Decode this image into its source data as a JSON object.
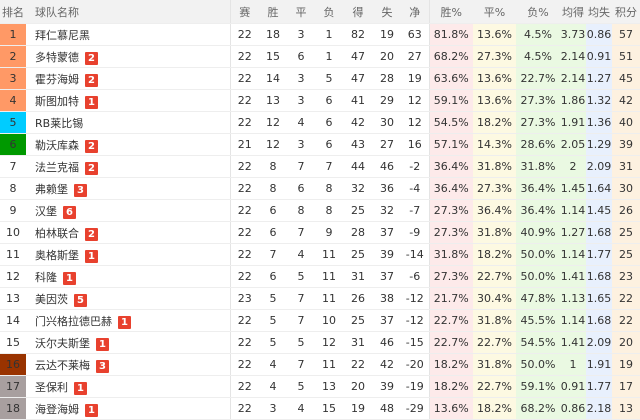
{
  "colors": {
    "champions": "#ff9966",
    "europa": "#00ccff",
    "conference": "#009900",
    "playoff": "#993300",
    "relegation": "#a89f9f",
    "badge": "#e8412e"
  },
  "headers": [
    "排名",
    "球队名称",
    "赛",
    "胜",
    "平",
    "负",
    "得",
    "失",
    "净",
    "胜%",
    "平%",
    "负%",
    "均得",
    "均失",
    "积分"
  ],
  "rows": [
    {
      "rank": "1",
      "zone": "champions",
      "name": "拜仁慕尼黑",
      "badge": "",
      "v": [
        "22",
        "18",
        "3",
        "1",
        "82",
        "19",
        "63",
        "81.8%",
        "13.6%",
        "4.5%",
        "3.73",
        "0.86",
        "57"
      ]
    },
    {
      "rank": "2",
      "zone": "champions",
      "name": "多特蒙德",
      "badge": "2",
      "v": [
        "22",
        "15",
        "6",
        "1",
        "47",
        "20",
        "27",
        "68.2%",
        "27.3%",
        "4.5%",
        "2.14",
        "0.91",
        "51"
      ]
    },
    {
      "rank": "3",
      "zone": "champions",
      "name": "霍芬海姆",
      "badge": "2",
      "v": [
        "22",
        "14",
        "3",
        "5",
        "47",
        "28",
        "19",
        "63.6%",
        "13.6%",
        "22.7%",
        "2.14",
        "1.27",
        "45"
      ]
    },
    {
      "rank": "4",
      "zone": "champions",
      "name": "斯图加特",
      "badge": "1",
      "v": [
        "22",
        "13",
        "3",
        "6",
        "41",
        "29",
        "12",
        "59.1%",
        "13.6%",
        "27.3%",
        "1.86",
        "1.32",
        "42"
      ]
    },
    {
      "rank": "5",
      "zone": "europa",
      "name": "RB莱比锡",
      "badge": "",
      "v": [
        "22",
        "12",
        "4",
        "6",
        "42",
        "30",
        "12",
        "54.5%",
        "18.2%",
        "27.3%",
        "1.91",
        "1.36",
        "40"
      ]
    },
    {
      "rank": "6",
      "zone": "conference",
      "name": "勒沃库森",
      "badge": "2",
      "v": [
        "21",
        "12",
        "3",
        "6",
        "43",
        "27",
        "16",
        "57.1%",
        "14.3%",
        "28.6%",
        "2.05",
        "1.29",
        "39"
      ]
    },
    {
      "rank": "7",
      "zone": "",
      "name": "法兰克福",
      "badge": "2",
      "v": [
        "22",
        "8",
        "7",
        "7",
        "44",
        "46",
        "-2",
        "36.4%",
        "31.8%",
        "31.8%",
        "2",
        "2.09",
        "31"
      ]
    },
    {
      "rank": "8",
      "zone": "",
      "name": "弗赖堡",
      "badge": "3",
      "v": [
        "22",
        "8",
        "6",
        "8",
        "32",
        "36",
        "-4",
        "36.4%",
        "27.3%",
        "36.4%",
        "1.45",
        "1.64",
        "30"
      ]
    },
    {
      "rank": "9",
      "zone": "",
      "name": "汉堡",
      "badge": "6",
      "v": [
        "22",
        "6",
        "8",
        "8",
        "25",
        "32",
        "-7",
        "27.3%",
        "36.4%",
        "36.4%",
        "1.14",
        "1.45",
        "26"
      ]
    },
    {
      "rank": "10",
      "zone": "",
      "name": "柏林联合",
      "badge": "2",
      "v": [
        "22",
        "6",
        "7",
        "9",
        "28",
        "37",
        "-9",
        "27.3%",
        "31.8%",
        "40.9%",
        "1.27",
        "1.68",
        "25"
      ]
    },
    {
      "rank": "11",
      "zone": "",
      "name": "奥格斯堡",
      "badge": "1",
      "v": [
        "22",
        "7",
        "4",
        "11",
        "25",
        "39",
        "-14",
        "31.8%",
        "18.2%",
        "50.0%",
        "1.14",
        "1.77",
        "25"
      ]
    },
    {
      "rank": "12",
      "zone": "",
      "name": "科隆",
      "badge": "1",
      "v": [
        "22",
        "6",
        "5",
        "11",
        "31",
        "37",
        "-6",
        "27.3%",
        "22.7%",
        "50.0%",
        "1.41",
        "1.68",
        "23"
      ]
    },
    {
      "rank": "13",
      "zone": "",
      "name": "美因茨",
      "badge": "5",
      "v": [
        "23",
        "5",
        "7",
        "11",
        "26",
        "38",
        "-12",
        "21.7%",
        "30.4%",
        "47.8%",
        "1.13",
        "1.65",
        "22"
      ]
    },
    {
      "rank": "14",
      "zone": "",
      "name": "门兴格拉德巴赫",
      "badge": "1",
      "v": [
        "22",
        "5",
        "7",
        "10",
        "25",
        "37",
        "-12",
        "22.7%",
        "31.8%",
        "45.5%",
        "1.14",
        "1.68",
        "22"
      ]
    },
    {
      "rank": "15",
      "zone": "",
      "name": "沃尔夫斯堡",
      "badge": "1",
      "v": [
        "22",
        "5",
        "5",
        "12",
        "31",
        "46",
        "-15",
        "22.7%",
        "22.7%",
        "54.5%",
        "1.41",
        "2.09",
        "20"
      ]
    },
    {
      "rank": "16",
      "zone": "playoff",
      "name": "云达不莱梅",
      "badge": "3",
      "v": [
        "22",
        "4",
        "7",
        "11",
        "22",
        "42",
        "-20",
        "18.2%",
        "31.8%",
        "50.0%",
        "1",
        "1.91",
        "19"
      ]
    },
    {
      "rank": "17",
      "zone": "relegation",
      "name": "圣保利",
      "badge": "1",
      "v": [
        "22",
        "4",
        "5",
        "13",
        "20",
        "39",
        "-19",
        "18.2%",
        "22.7%",
        "59.1%",
        "0.91",
        "1.77",
        "17"
      ]
    },
    {
      "rank": "18",
      "zone": "relegation",
      "name": "海登海姆",
      "badge": "1",
      "v": [
        "22",
        "3",
        "4",
        "15",
        "19",
        "48",
        "-29",
        "13.6%",
        "18.2%",
        "68.2%",
        "0.86",
        "2.18",
        "13"
      ]
    }
  ]
}
